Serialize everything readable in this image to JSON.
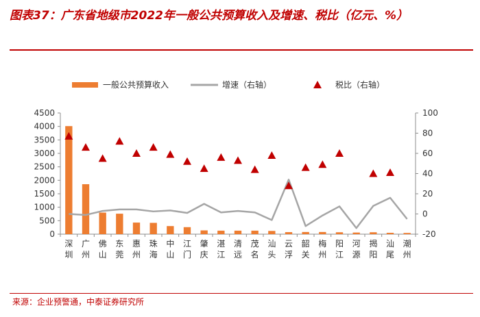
{
  "header": {
    "title": "图表37：广东省地级市2022年一般公共预算收入及增速、税比（亿元、%）"
  },
  "footer": {
    "source": "来源：企业预警通，中泰证券研究所"
  },
  "colors": {
    "bar": "#ed7d31",
    "line": "#a5a5a5",
    "marker": "#c00000",
    "accent": "#c00000"
  },
  "chart_data": {
    "type": "bar+line+scatter",
    "categories": [
      "深圳",
      "广州",
      "佛山",
      "东莞",
      "惠州",
      "珠海",
      "中山",
      "江门",
      "肇庆",
      "湛江",
      "清远",
      "茂名",
      "汕头",
      "云浮",
      "韶关",
      "梅州",
      "阳江",
      "河源",
      "揭阳",
      "汕尾",
      "潮州"
    ],
    "series": [
      {
        "name": "一般公共预算收入",
        "axis": "left",
        "kind": "bar",
        "values": [
          4012,
          1855,
          800,
          760,
          430,
          420,
          300,
          260,
          140,
          130,
          130,
          130,
          120,
          75,
          80,
          80,
          70,
          60,
          70,
          50,
          45
        ]
      },
      {
        "name": "增速（右轴）",
        "axis": "right",
        "kind": "line",
        "values": [
          0,
          -1,
          3,
          4.5,
          4.5,
          2.5,
          3.5,
          1,
          10,
          1.5,
          3,
          1.5,
          -6,
          34,
          -12,
          -1.5,
          7.5,
          -14,
          8,
          16,
          -5
        ]
      },
      {
        "name": "税比（右轴）",
        "axis": "right",
        "kind": "marker",
        "values": [
          77,
          66,
          55,
          72,
          60,
          66,
          59,
          52,
          45,
          56,
          53,
          44,
          58,
          28,
          46,
          49,
          60,
          null,
          40,
          41,
          null
        ]
      }
    ],
    "yleft": {
      "min": 0,
      "max": 4500,
      "step": 500,
      "ticks": [
        "0",
        "500",
        "1000",
        "1500",
        "2000",
        "2500",
        "3000",
        "3500",
        "4000",
        "4500"
      ]
    },
    "yright": {
      "min": -20,
      "max": 100,
      "step": 20,
      "ticks": [
        "-20",
        "0",
        "20",
        "40",
        "60",
        "80",
        "100"
      ]
    }
  }
}
